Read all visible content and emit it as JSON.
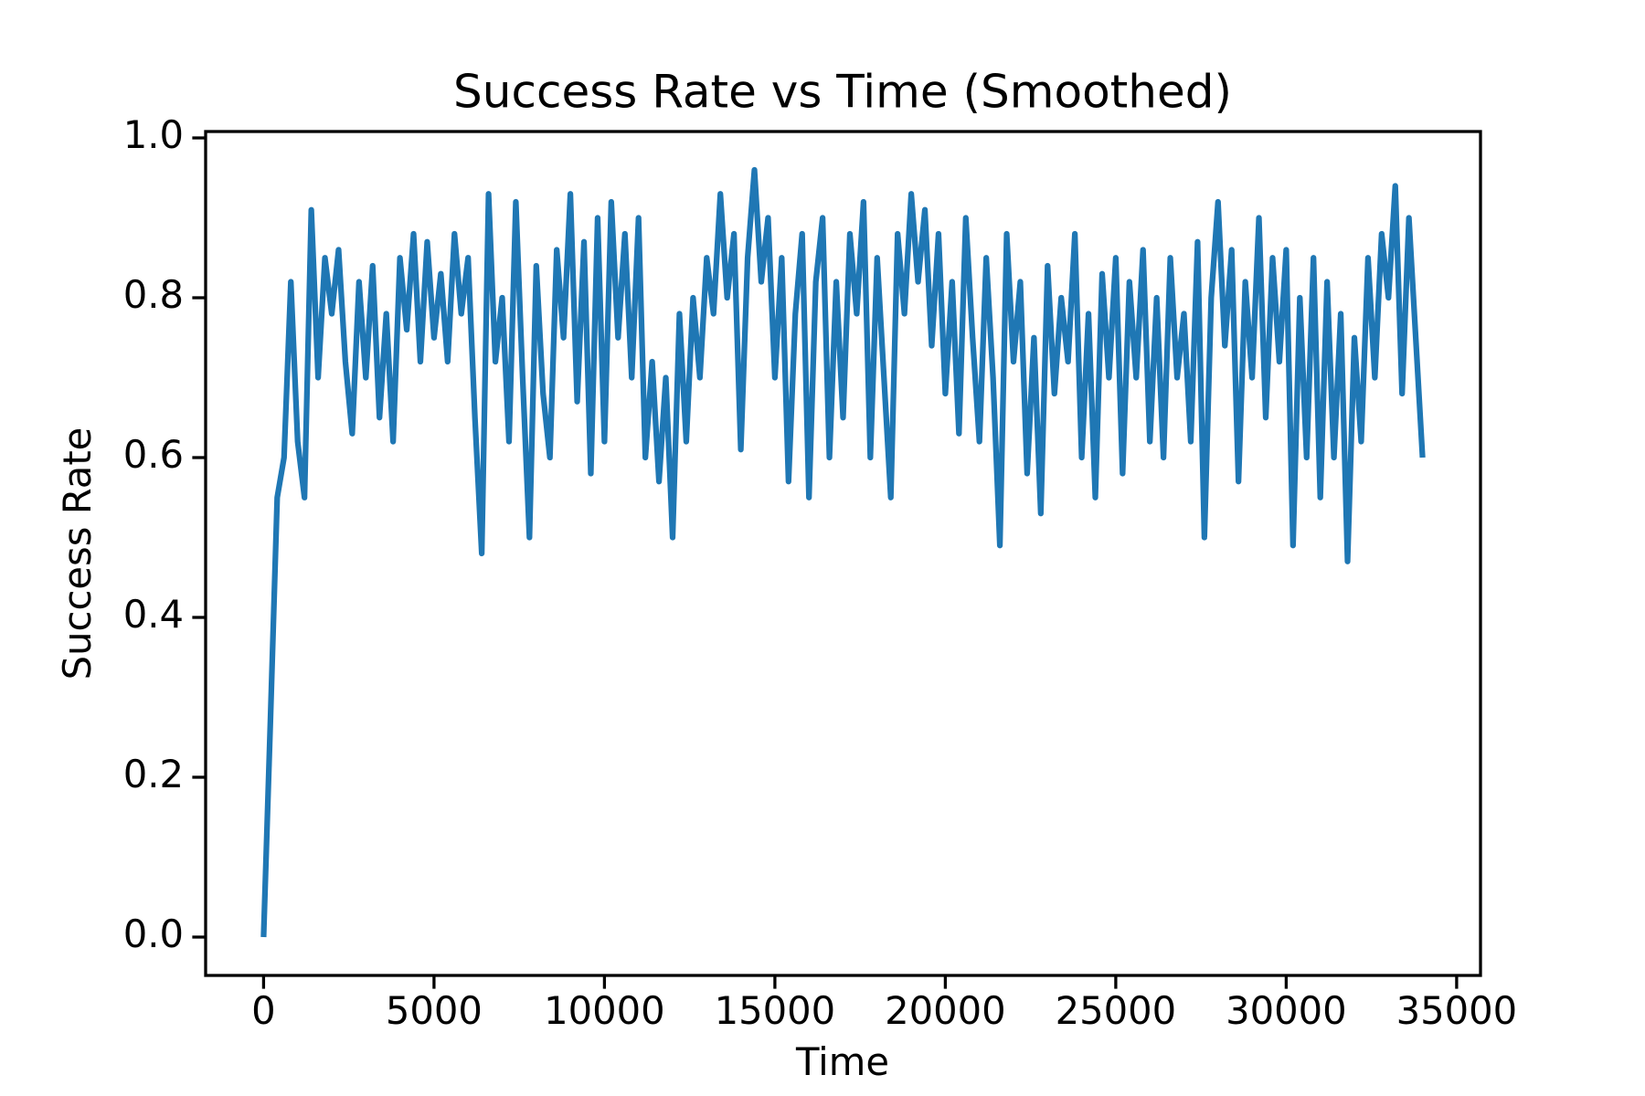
{
  "chart_data": {
    "type": "line",
    "title": "Success Rate vs Time (Smoothed)",
    "x_label": "Time",
    "y_label": "Success Rate",
    "x": [
      0,
      200,
      400,
      600,
      800,
      1000,
      1200,
      1400,
      1600,
      1800,
      2000,
      2200,
      2400,
      2600,
      2800,
      3000,
      3200,
      3400,
      3600,
      3800,
      4000,
      4200,
      4400,
      4600,
      4800,
      5000,
      5200,
      5400,
      5600,
      5800,
      6000,
      6200,
      6400,
      6600,
      6800,
      7000,
      7200,
      7400,
      7600,
      7800,
      8000,
      8200,
      8400,
      8600,
      8800,
      9000,
      9200,
      9400,
      9600,
      9800,
      10000,
      10200,
      10400,
      10600,
      10800,
      11000,
      11200,
      11400,
      11600,
      11800,
      12000,
      12200,
      12400,
      12600,
      12800,
      13000,
      13200,
      13400,
      13600,
      13800,
      14000,
      14200,
      14400,
      14600,
      14800,
      15000,
      15200,
      15400,
      15600,
      15800,
      16000,
      16200,
      16400,
      16600,
      16800,
      17000,
      17200,
      17400,
      17600,
      17800,
      18000,
      18200,
      18400,
      18600,
      18800,
      19000,
      19200,
      19400,
      19600,
      19800,
      20000,
      20200,
      20400,
      20600,
      20800,
      21000,
      21200,
      21400,
      21600,
      21800,
      22000,
      22200,
      22400,
      22600,
      22800,
      23000,
      23200,
      23400,
      23600,
      23800,
      24000,
      24200,
      24400,
      24600,
      24800,
      25000,
      25200,
      25400,
      25600,
      25800,
      26000,
      26200,
      26400,
      26600,
      26800,
      27000,
      27200,
      27400,
      27600,
      27800,
      28000,
      28200,
      28400,
      28600,
      28800,
      29000,
      29200,
      29400,
      29600,
      29800,
      30000,
      30200,
      30400,
      30600,
      30800,
      31000,
      31200,
      31400,
      31600,
      31800,
      32000,
      32200,
      32400,
      32600,
      32800,
      33000,
      33200,
      33400,
      33600,
      33800,
      34000
    ],
    "series": [
      {
        "name": "Success Rate",
        "color": "#1f77b4",
        "values": [
          0.0,
          0.27,
          0.55,
          0.6,
          0.82,
          0.62,
          0.55,
          0.91,
          0.7,
          0.85,
          0.78,
          0.86,
          0.72,
          0.63,
          0.82,
          0.7,
          0.84,
          0.65,
          0.78,
          0.62,
          0.85,
          0.76,
          0.88,
          0.72,
          0.87,
          0.75,
          0.83,
          0.72,
          0.88,
          0.78,
          0.85,
          0.65,
          0.48,
          0.93,
          0.72,
          0.8,
          0.62,
          0.92,
          0.7,
          0.5,
          0.84,
          0.68,
          0.6,
          0.86,
          0.75,
          0.93,
          0.67,
          0.87,
          0.58,
          0.9,
          0.62,
          0.92,
          0.75,
          0.88,
          0.7,
          0.9,
          0.6,
          0.72,
          0.57,
          0.7,
          0.5,
          0.78,
          0.62,
          0.8,
          0.7,
          0.85,
          0.78,
          0.93,
          0.8,
          0.88,
          0.61,
          0.85,
          0.96,
          0.82,
          0.9,
          0.7,
          0.85,
          0.57,
          0.78,
          0.88,
          0.55,
          0.82,
          0.9,
          0.6,
          0.82,
          0.65,
          0.88,
          0.78,
          0.92,
          0.6,
          0.85,
          0.7,
          0.55,
          0.88,
          0.78,
          0.93,
          0.82,
          0.91,
          0.74,
          0.88,
          0.68,
          0.82,
          0.63,
          0.9,
          0.75,
          0.62,
          0.85,
          0.7,
          0.49,
          0.88,
          0.72,
          0.82,
          0.58,
          0.75,
          0.53,
          0.84,
          0.68,
          0.8,
          0.72,
          0.88,
          0.6,
          0.78,
          0.55,
          0.83,
          0.7,
          0.85,
          0.58,
          0.82,
          0.7,
          0.86,
          0.62,
          0.8,
          0.6,
          0.85,
          0.7,
          0.78,
          0.62,
          0.87,
          0.5,
          0.8,
          0.92,
          0.74,
          0.86,
          0.57,
          0.82,
          0.7,
          0.9,
          0.65,
          0.85,
          0.72,
          0.86,
          0.49,
          0.8,
          0.6,
          0.85,
          0.55,
          0.82,
          0.6,
          0.78,
          0.47,
          0.75,
          0.62,
          0.85,
          0.7,
          0.88,
          0.8,
          0.94,
          0.68,
          0.9,
          0.75,
          0.6
        ]
      }
    ],
    "xlim": [
      -1700,
      35700
    ],
    "ylim": [
      -0.048,
      1.008
    ],
    "xticks": [
      0,
      5000,
      10000,
      15000,
      20000,
      25000,
      30000,
      35000
    ],
    "yticks": [
      {
        "value": 0,
        "label": "0.0"
      },
      0.2,
      0.4,
      0.6,
      0.8,
      {
        "value": 1,
        "label": "1.0"
      }
    ]
  }
}
